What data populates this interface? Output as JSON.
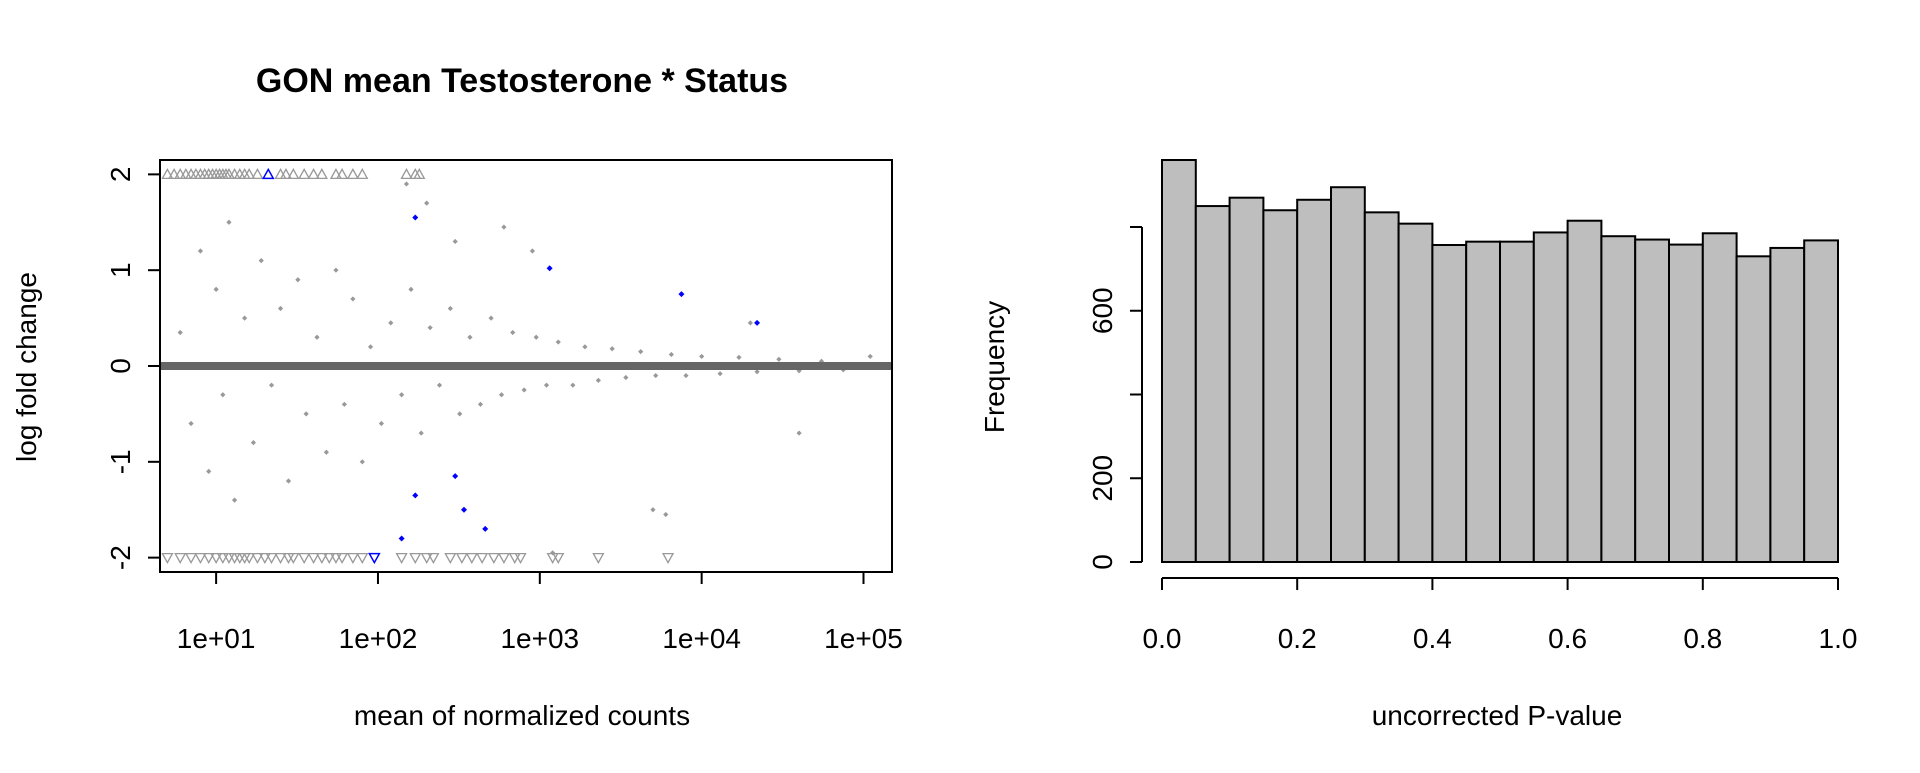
{
  "chart_data": [
    {
      "type": "scatter",
      "subtype": "MA-plot",
      "title": "GON mean Testosterone * Status",
      "xlabel": "mean of normalized counts",
      "ylabel": "log fold change",
      "x_scale": "log10",
      "xlim": [
        4.5,
        150000
      ],
      "ylim": [
        -2.15,
        2.15
      ],
      "x_ticks": [
        10,
        100,
        1000,
        10000,
        100000
      ],
      "x_tick_labels": [
        "1e+01",
        "1e+02",
        "1e+03",
        "1e+04",
        "1e+05"
      ],
      "y_ticks": [
        -2,
        -1,
        0,
        1,
        2
      ],
      "y_tick_labels": [
        "-2",
        "-1",
        "0",
        "1",
        "2"
      ],
      "y_clip": 2,
      "baseline": 0,
      "series": [
        {
          "role": "not significant",
          "color": "#999999",
          "points": [
            [
              6,
              0.35
            ],
            [
              7,
              -0.6
            ],
            [
              8,
              1.2
            ],
            [
              9,
              -1.1
            ],
            [
              10,
              0.8
            ],
            [
              11,
              -0.3
            ],
            [
              12,
              1.5
            ],
            [
              13,
              -1.4
            ],
            [
              15,
              0.5
            ],
            [
              17,
              -0.8
            ],
            [
              19,
              1.1
            ],
            [
              22,
              -0.2
            ],
            [
              25,
              0.6
            ],
            [
              28,
              -1.2
            ],
            [
              32,
              0.9
            ],
            [
              36,
              -0.5
            ],
            [
              42,
              0.3
            ],
            [
              48,
              -0.9
            ],
            [
              55,
              1.0
            ],
            [
              62,
              -0.4
            ],
            [
              70,
              0.7
            ],
            [
              80,
              -1.0
            ],
            [
              90,
              0.2
            ],
            [
              105,
              -0.6
            ],
            [
              120,
              0.45
            ],
            [
              140,
              -0.3
            ],
            [
              160,
              0.8
            ],
            [
              185,
              -0.7
            ],
            [
              210,
              0.4
            ],
            [
              240,
              -0.2
            ],
            [
              280,
              0.6
            ],
            [
              320,
              -0.5
            ],
            [
              370,
              0.3
            ],
            [
              430,
              -0.4
            ],
            [
              500,
              0.5
            ],
            [
              580,
              -0.3
            ],
            [
              680,
              0.35
            ],
            [
              800,
              -0.25
            ],
            [
              950,
              0.3
            ],
            [
              1100,
              -0.2
            ],
            [
              1300,
              0.25
            ],
            [
              1600,
              -0.2
            ],
            [
              1900,
              0.2
            ],
            [
              2300,
              -0.15
            ],
            [
              2800,
              0.18
            ],
            [
              3400,
              -0.12
            ],
            [
              4200,
              0.15
            ],
            [
              5200,
              -0.1
            ],
            [
              6500,
              0.12
            ],
            [
              8000,
              -0.1
            ],
            [
              10000,
              0.1
            ],
            [
              13000,
              -0.08
            ],
            [
              17000,
              0.09
            ],
            [
              22000,
              -0.06
            ],
            [
              30000,
              0.07
            ],
            [
              40000,
              -0.05
            ],
            [
              55000,
              0.05
            ],
            [
              75000,
              -0.04
            ],
            [
              110000,
              0.1
            ],
            [
              40000,
              -0.7
            ],
            [
              6000,
              -1.55
            ],
            [
              5000,
              -1.5
            ],
            [
              1200,
              -1.95
            ],
            [
              150,
              1.9
            ],
            [
              200,
              1.7
            ],
            [
              300,
              1.3
            ],
            [
              600,
              1.45
            ],
            [
              900,
              1.2
            ],
            [
              20000,
              0.45
            ]
          ],
          "clipped_top_x": [
            5,
            5.5,
            6,
            6.5,
            7,
            7.5,
            8,
            8.5,
            9,
            9.5,
            10,
            10.5,
            11,
            11.5,
            12,
            13,
            14,
            15,
            16,
            18,
            25,
            27,
            30,
            35,
            40,
            45,
            55,
            60,
            70,
            80,
            150,
            170,
            180
          ],
          "clipped_bottom_x": [
            5,
            6,
            7,
            8,
            9,
            10,
            11,
            12,
            13,
            14,
            15,
            16,
            18,
            20,
            22,
            25,
            28,
            30,
            35,
            40,
            45,
            50,
            55,
            60,
            70,
            80,
            140,
            170,
            200,
            220,
            280,
            330,
            380,
            440,
            520,
            600,
            700,
            760,
            1200,
            1300,
            2300,
            6200
          ]
        },
        {
          "role": "significant",
          "color": "#0000ff",
          "points": [
            [
              21,
              2
            ],
            [
              170,
              1.55
            ],
            [
              1150,
              1.02
            ],
            [
              7500,
              0.75
            ],
            [
              22000,
              0.45
            ],
            [
              300,
              -1.15
            ],
            [
              340,
              -1.5
            ],
            [
              170,
              -1.35
            ],
            [
              140,
              -1.8
            ],
            [
              460,
              -1.7
            ],
            [
              95,
              -2
            ]
          ]
        }
      ]
    },
    {
      "type": "bar",
      "subtype": "histogram",
      "xlabel": "uncorrected P-value",
      "ylabel": "Frequency",
      "xlim": [
        0,
        1
      ],
      "ylim": [
        0,
        960
      ],
      "x_ticks": [
        0,
        0.2,
        0.4,
        0.6,
        0.8,
        1.0
      ],
      "x_tick_labels": [
        "0.0",
        "0.2",
        "0.4",
        "0.6",
        "0.8",
        "1.0"
      ],
      "y_ticks": [
        0,
        200,
        400,
        600,
        800
      ],
      "y_tick_labels": [
        "0",
        "200",
        "",
        "600",
        ""
      ],
      "bin_width": 0.05,
      "values": [
        960,
        850,
        870,
        840,
        865,
        895,
        835,
        808,
        757,
        765,
        765,
        787,
        815,
        778,
        770,
        758,
        785,
        730,
        750,
        768
      ],
      "bar_color": "#bebebe"
    }
  ]
}
